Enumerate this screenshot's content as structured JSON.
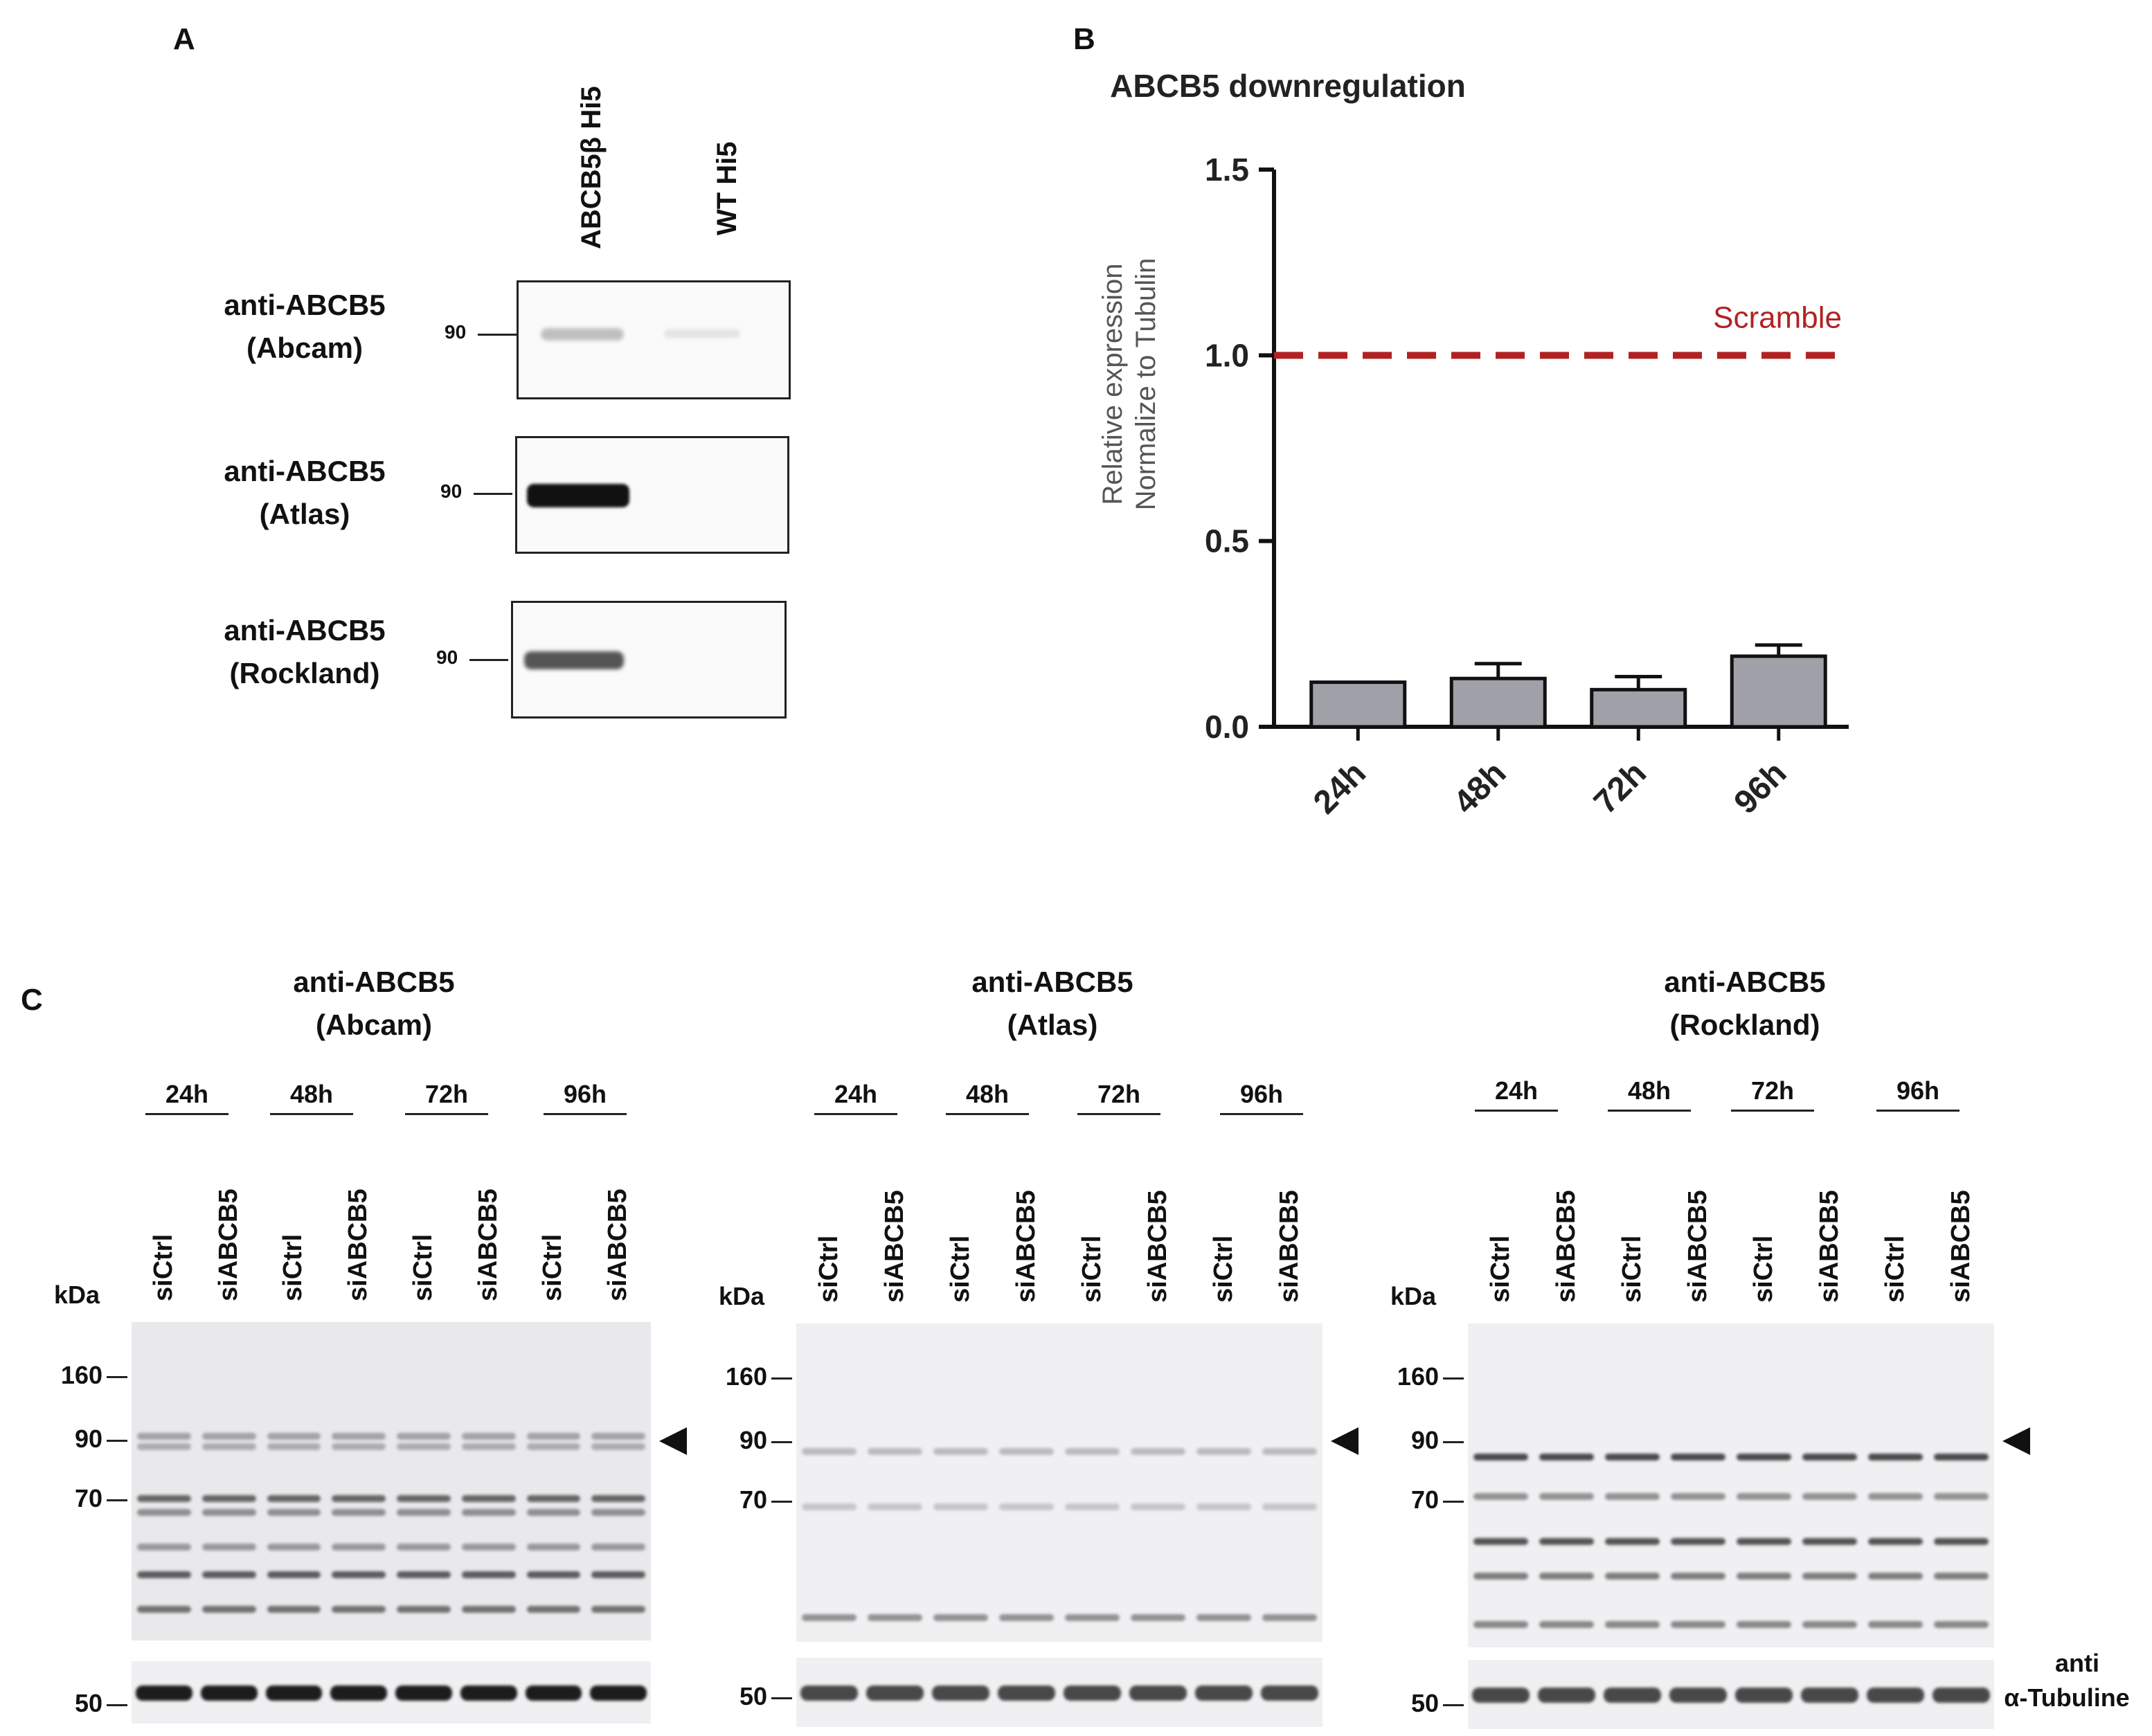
{
  "panel_a": {
    "label": "A",
    "lanes": [
      "ABCB5β Hi5",
      "WT Hi5"
    ],
    "blots": [
      {
        "antibody": "anti-ABCB5",
        "source": "(Abcam)",
        "marker": "90",
        "band": [
          0.35,
          0.08
        ]
      },
      {
        "antibody": "anti-ABCB5",
        "source": "(Atlas)",
        "marker": "90",
        "band": [
          0.95,
          0.0
        ]
      },
      {
        "antibody": "anti-ABCB5",
        "source": "(Rockland)",
        "marker": "90",
        "band": [
          0.6,
          0.0
        ]
      }
    ]
  },
  "panel_b": {
    "label": "B",
    "scramble_label": "Scramble"
  },
  "chart_data": {
    "type": "bar",
    "title": "ABCB5 downregulation",
    "ylabel_line1": "Relative expression",
    "ylabel_line2": "Normalize to Tubulin",
    "categories": [
      "24h",
      "48h",
      "72h",
      "96h"
    ],
    "values": [
      0.12,
      0.13,
      0.1,
      0.19
    ],
    "errors": [
      0.0,
      0.04,
      0.035,
      0.03
    ],
    "yticks": [
      "0.0",
      "0.5",
      "1.0",
      "1.5"
    ],
    "ylim": [
      0,
      1.5
    ],
    "reference_line": {
      "y": 1.0,
      "label": "Scramble",
      "color": "#b22222"
    },
    "bar_color": "#a0a0a8"
  },
  "panel_c": {
    "label": "C",
    "kda_label": "kDa",
    "arrow": "◀",
    "tubulin_label_1": "anti",
    "tubulin_label_2": "α-Tubuline",
    "timepoints": [
      "24h",
      "48h",
      "72h",
      "96h"
    ],
    "lanes": [
      "siCtrl",
      "siABCB5",
      "siCtrl",
      "siABCB5",
      "siCtrl",
      "siABCB5",
      "siCtrl",
      "siABCB5"
    ],
    "blots": [
      {
        "antibody": "anti-ABCB5",
        "source": "(Abcam)",
        "markers": [
          "160",
          "90",
          "70",
          "50"
        ]
      },
      {
        "antibody": "anti-ABCB5",
        "source": "(Atlas)",
        "markers": [
          "160",
          "90",
          "70",
          "50"
        ]
      },
      {
        "antibody": "anti-ABCB5",
        "source": "(Rockland)",
        "markers": [
          "160",
          "90",
          "70",
          "50"
        ]
      }
    ]
  }
}
